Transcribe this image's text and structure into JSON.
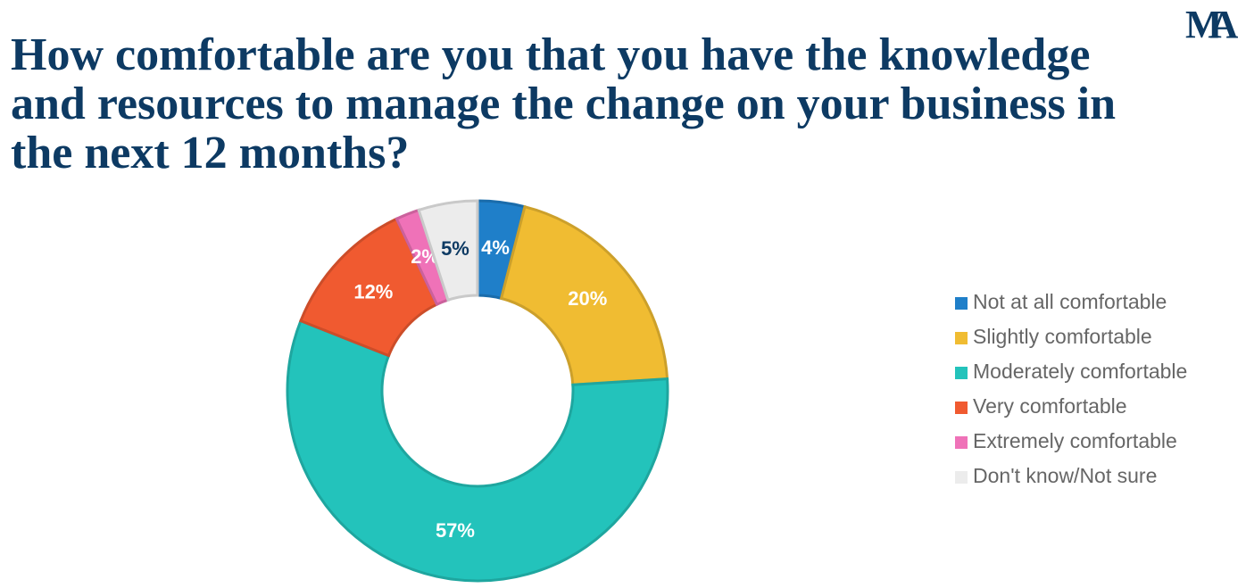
{
  "logo": "MA",
  "chart_data": {
    "type": "donut",
    "title": "How comfortable are you that you have the knowledge and resources to manage the change on your business in the next 12 months?",
    "categories": [
      "Not at all comfortable",
      "Slightly comfortable",
      "Moderately comfortable",
      "Very comfortable",
      "Extremely comfortable",
      "Don't know/Not sure"
    ],
    "values": [
      4,
      20,
      57,
      12,
      2,
      5
    ],
    "value_labels": [
      "4%",
      "20%",
      "57%",
      "12%",
      "2%",
      "5%"
    ],
    "colors": [
      "#1f7fc9",
      "#f0bc32",
      "#23c3bb",
      "#f05a30",
      "#ef72b8",
      "#ececec"
    ],
    "legend": "right"
  }
}
